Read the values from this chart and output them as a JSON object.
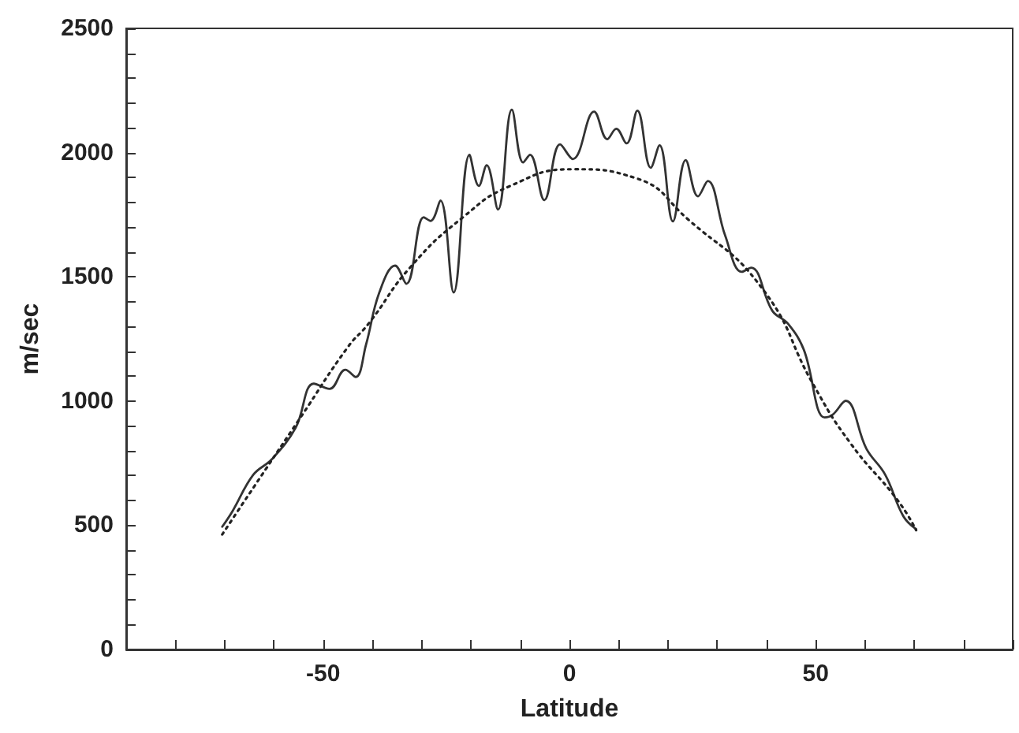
{
  "chart_data": {
    "type": "line",
    "xlabel": "Latitude",
    "ylabel": "m/sec",
    "xlim": [
      -90,
      90
    ],
    "xticks": [
      {
        "value": -90,
        "label": null
      },
      {
        "value": -80,
        "label": null
      },
      {
        "value": -70,
        "label": null
      },
      {
        "value": -60,
        "label": null
      },
      -50,
      {
        "value": -40,
        "label": null
      },
      {
        "value": -30,
        "label": null
      },
      {
        "value": -20,
        "label": null
      },
      {
        "value": -10,
        "label": null
      },
      0,
      {
        "value": 10,
        "label": null
      },
      {
        "value": 20,
        "label": null
      },
      {
        "value": 30,
        "label": null
      },
      {
        "value": 40,
        "label": null
      },
      50,
      {
        "value": 60,
        "label": null
      },
      {
        "value": 70,
        "label": null
      },
      {
        "value": 80,
        "label": null
      },
      {
        "value": 90,
        "label": null
      }
    ],
    "ylim": [
      0,
      2500
    ],
    "yticks": [
      0,
      {
        "value": 100,
        "label": null
      },
      {
        "value": 200,
        "label": null
      },
      {
        "value": 300,
        "label": null
      },
      {
        "value": 400,
        "label": null
      },
      500,
      {
        "value": 600,
        "label": null
      },
      {
        "value": 700,
        "label": null
      },
      {
        "value": 800,
        "label": null
      },
      {
        "value": 900,
        "label": null
      },
      1000,
      {
        "value": 1100,
        "label": null
      },
      {
        "value": 1200,
        "label": null
      },
      {
        "value": 1300,
        "label": null
      },
      {
        "value": 1400,
        "label": null
      },
      1500,
      {
        "value": 1600,
        "label": null
      },
      {
        "value": 1700,
        "label": null
      },
      {
        "value": 1800,
        "label": null
      },
      {
        "value": 1900,
        "label": null
      },
      2000,
      {
        "value": 2100,
        "label": null
      },
      {
        "value": 2200,
        "label": null
      },
      {
        "value": 2300,
        "label": null
      },
      {
        "value": 2400,
        "label": null
      },
      2500
    ],
    "grid": false,
    "marker": "none",
    "series": [
      {
        "color": "#333333",
        "line_style": "solid",
        "x": [
          -70.5,
          -68.4,
          -64.2,
          -60.4,
          -55.6,
          -51.9,
          -48.7,
          -45.5,
          -43.4,
          -41.3,
          -38.6,
          -35.4,
          -33.1,
          -29.6,
          -28.2,
          -26.2,
          -23.5,
          -20.3,
          -18.4,
          -16.8,
          -14.5,
          -11.7,
          -9.4,
          -8.0,
          -5.1,
          -1.9,
          0.7,
          5.0,
          7.7,
          9.5,
          11.6,
          13.8,
          16.5,
          18.3,
          21.0,
          23.6,
          26.1,
          28.1,
          31.6,
          35.0,
          36.9,
          41.2,
          44.4,
          47.6,
          51.8,
          53.4,
          56.1,
          60.3,
          64.1,
          67.8,
          70.4
        ],
        "values": [
          494,
          557,
          703,
          766,
          892,
          1070,
          1049,
          1126,
          1097,
          1227,
          1437,
          1545,
          1472,
          1740,
          1725,
          1807,
          1437,
          1991,
          1866,
          1949,
          1771,
          2173,
          1960,
          1991,
          1809,
          2033,
          1974,
          2165,
          2054,
          2096,
          2037,
          2169,
          1939,
          2029,
          1723,
          1970,
          1824,
          1886,
          1667,
          1520,
          1537,
          1363,
          1311,
          1206,
          934,
          944,
          1001,
          808,
          704,
          536,
          484
        ]
      },
      {
        "color": "#222222",
        "line_style": "dotted",
        "x": [
          -70.5,
          -63.1,
          -54.6,
          -45.0,
          -40.8,
          -32.2,
          -21.6,
          -12.0,
          0.7,
          13.5,
          24.2,
          39.0,
          49.7,
          57.1,
          66.7,
          70.4
        ],
        "values": [
          463,
          683,
          934,
          1217,
          1311,
          1541,
          1740,
          1866,
          1933,
          1897,
          1729,
          1457,
          1060,
          829,
          599,
          480
        ]
      }
    ]
  }
}
